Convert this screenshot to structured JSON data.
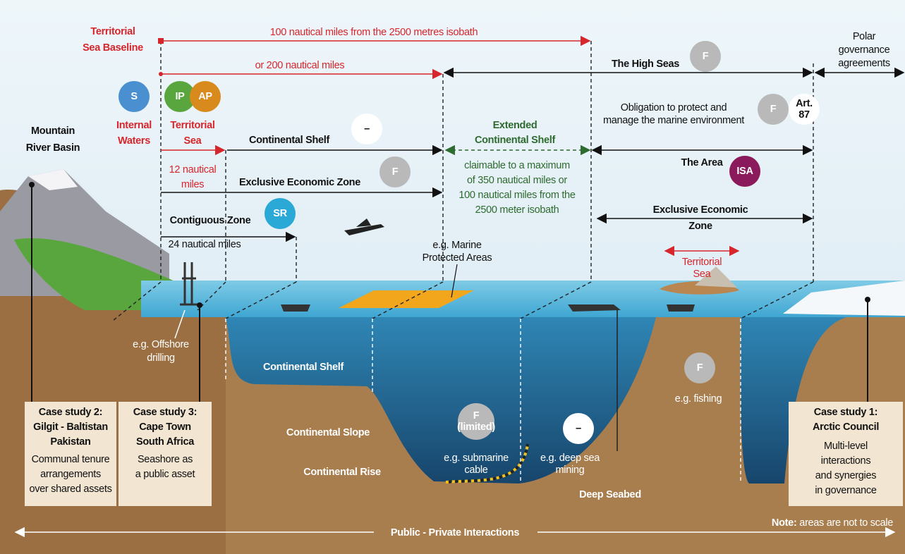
{
  "labels": [
    {
      "lines": [
        "Territorial",
        "Sea Baseline"
      ]
    },
    {
      "lines": [
        "100 nautical miles from the 2500 metres isobath"
      ]
    },
    {
      "lines": [
        "or 200 nautical miles"
      ]
    },
    {
      "lines": [
        "The High Seas"
      ]
    },
    {
      "lines": [
        "Polar",
        "governance",
        "agreements"
      ]
    },
    {
      "lines": [
        "Internal",
        "Waters"
      ]
    },
    {
      "lines": [
        "Territorial",
        "Sea"
      ]
    },
    {
      "lines": [
        "Mountain",
        "River Basin"
      ]
    },
    {
      "lines": [
        "Continental Shelf"
      ]
    },
    {
      "lines": [
        "Extended",
        "Continental Shelf"
      ]
    },
    {
      "lines": [
        "Obligation to protect and",
        "manage the marine environment"
      ]
    },
    {
      "lines": [
        "12 nautical",
        "miles"
      ]
    },
    {
      "lines": [
        "Exclusive Economic Zone"
      ]
    },
    {
      "lines": [
        "claimable to a maximum",
        "of 350 nautical miles or",
        "100 nautical miles from the",
        "2500 meter isobath"
      ]
    },
    {
      "lines": [
        "The Area"
      ]
    },
    {
      "lines": [
        "Contiguous Zone"
      ]
    },
    {
      "lines": [
        "24 nautical miles"
      ]
    },
    {
      "lines": [
        "Exclusive Economic",
        "Zone"
      ]
    },
    {
      "lines": [
        "Territorial",
        "Sea"
      ]
    },
    {
      "lines": [
        "e.g. Marine",
        "Protected Areas"
      ]
    },
    {
      "lines": [
        "e.g. Offshore",
        "drilling"
      ]
    },
    {
      "lines": [
        "Continental Shelf"
      ]
    },
    {
      "lines": [
        "e.g. fishing"
      ]
    },
    {
      "lines": [
        "Continental Slope"
      ]
    },
    {
      "lines": [
        "Continental Rise"
      ]
    },
    {
      "lines": [
        "e.g. submarine",
        "cable"
      ]
    },
    {
      "lines": [
        "e.g. deep sea",
        "mining"
      ]
    },
    {
      "lines": [
        "Deep Seabed"
      ]
    },
    {
      "lines": [
        "Public - Private Interactions"
      ]
    }
  ],
  "badges": [
    {
      "lines": [
        "F"
      ]
    },
    {
      "lines": [
        "S"
      ]
    },
    {
      "lines": [
        "IP"
      ]
    },
    {
      "lines": [
        "AP"
      ]
    },
    {
      "lines": [
        "–"
      ]
    },
    {
      "lines": [
        "F"
      ]
    },
    {
      "lines": [
        "Art.",
        "87"
      ]
    },
    {
      "lines": [
        "F"
      ]
    },
    {
      "lines": [
        "ISA"
      ]
    },
    {
      "lines": [
        "SR"
      ]
    },
    {
      "lines": [
        "F"
      ]
    },
    {
      "lines": [
        "F",
        "(limited)"
      ]
    },
    {
      "lines": [
        "–"
      ]
    }
  ],
  "case_studies": [
    {
      "title": [
        "Case study 2:",
        "Gilgit - Baltistan",
        "Pakistan"
      ],
      "text": [
        "Communal tenure",
        "arrangements",
        "over shared assets"
      ]
    },
    {
      "title": [
        "Case study 3:",
        "Cape Town",
        "South Africa"
      ],
      "text": [
        "Seashore as",
        "a public asset"
      ]
    },
    {
      "title": [
        "Case study 1:",
        "Arctic Council"
      ],
      "text": [
        "Multi-level",
        "interactions",
        "and synergies",
        "in governance"
      ]
    }
  ],
  "note": {
    "bold": "Note:",
    "text": "areas are not to scale"
  }
}
